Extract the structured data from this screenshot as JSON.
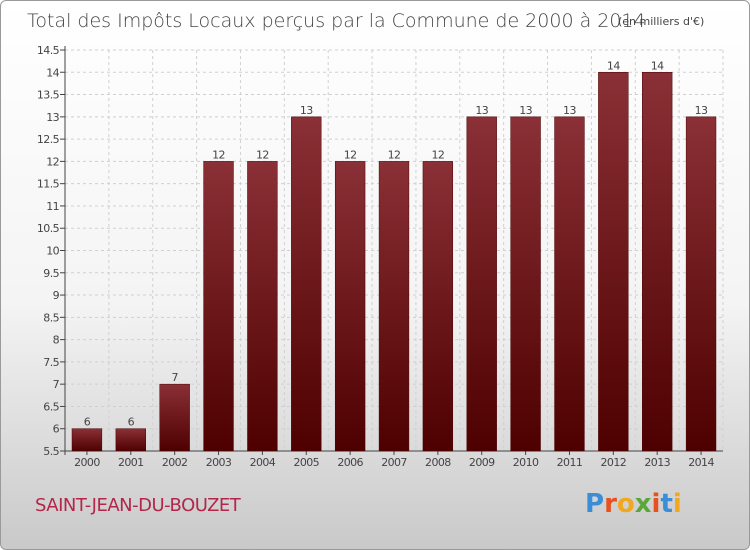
{
  "chart_data": {
    "type": "bar",
    "title": "Total des Impôts Locaux perçus par la Commune de 2000 à 2014",
    "unit_note": "(en milliers d'€)",
    "categories": [
      "2000",
      "2001",
      "2002",
      "2003",
      "2004",
      "2005",
      "2006",
      "2007",
      "2008",
      "2009",
      "2010",
      "2011",
      "2012",
      "2013",
      "2014"
    ],
    "values": [
      6,
      6,
      7,
      12,
      12,
      13,
      12,
      12,
      12,
      13,
      13,
      13,
      14,
      14,
      13
    ],
    "value_labels": [
      "6",
      "6",
      "7",
      "12",
      "12",
      "13",
      "12",
      "12",
      "12",
      "13",
      "13",
      "13",
      "14",
      "14",
      "13"
    ],
    "yticks": [
      5.5,
      6,
      6.5,
      7,
      7.5,
      8,
      8.5,
      9,
      9.5,
      10,
      10.5,
      11,
      11.5,
      12,
      12.5,
      13,
      13.5,
      14,
      14.5
    ],
    "ylim": [
      5.5,
      14.5
    ],
    "xlabel": "",
    "ylabel": "",
    "grid": true,
    "bar_color": "#7a1f24",
    "bar_color_dark": "#5a0000"
  },
  "commune_name": "SAINT-JEAN-DU-BOUZET",
  "logo": {
    "letters": [
      "P",
      "r",
      "o",
      "x",
      "i",
      "t",
      "i"
    ],
    "colors": [
      "#3a8ed8",
      "#e8501e",
      "#f0a81e",
      "#5aa83a",
      "#e8501e",
      "#3a8ed8",
      "#f0a81e"
    ]
  }
}
